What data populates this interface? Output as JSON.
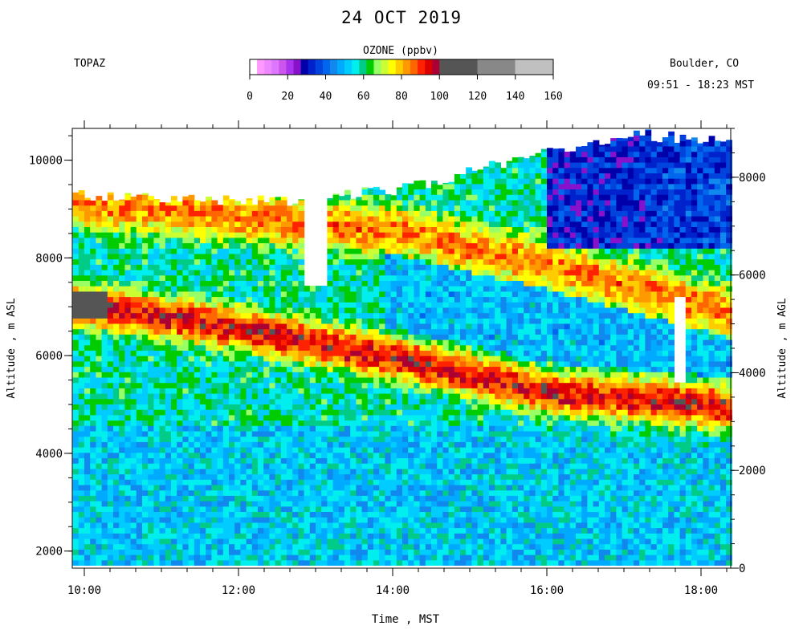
{
  "header": {
    "title": "24 OCT 2019",
    "station": "TOPAZ",
    "location": "Boulder, CO",
    "time_range": "09:51 - 18:23 MST"
  },
  "colorbar": {
    "title": "OZONE (ppbv)",
    "ticks": [
      "0",
      "20",
      "40",
      "60",
      "80",
      "100",
      "120",
      "140",
      "160"
    ],
    "fine_colors": [
      "#ffffff",
      "#ff99ff",
      "#ee88ff",
      "#dd77ff",
      "#cc55ee",
      "#aa33ee",
      "#8811cc",
      "#0000aa",
      "#0022cc",
      "#0044dd",
      "#0066ee",
      "#1188ee",
      "#00aaff",
      "#00ccff",
      "#00eeee",
      "#00cc88",
      "#00cc00",
      "#99ff66",
      "#ccff33",
      "#ffff00",
      "#ffcc00",
      "#ff9900",
      "#ff6600",
      "#ff2200",
      "#dd0000",
      "#aa0033"
    ],
    "coarse_colors": [
      "#555555",
      "#888888",
      "#c0c0c0"
    ]
  },
  "axes": {
    "xlabel": "Time , MST",
    "ylabel_left": "Altitude , m ASL",
    "ylabel_right": "Altitude , m AGL",
    "x_ticks": [
      "10:00",
      "12:00",
      "14:00",
      "16:00",
      "18:00"
    ],
    "y_left_ticks": [
      "2000",
      "4000",
      "6000",
      "8000",
      "10000"
    ],
    "y_right_ticks": [
      "0",
      "2000",
      "4000",
      "6000",
      "8000"
    ]
  },
  "chart_data": {
    "type": "heatmap",
    "title": "24 OCT 2019",
    "variable": "OZONE (ppbv)",
    "xlabel": "Time , MST",
    "ylabel": "Altitude , m ASL",
    "y2label": "Altitude , m AGL",
    "x_range": [
      "09:51",
      "18:23"
    ],
    "ylim": [
      1650,
      10650
    ],
    "y2lim": [
      0,
      9000
    ],
    "value_range": [
      0,
      160
    ],
    "top_of_data_m": [
      {
        "time": "09:51",
        "alt": 9300
      },
      {
        "time": "12:45",
        "alt": 9150
      },
      {
        "time": "14:00",
        "alt": 9400
      },
      {
        "time": "15:30",
        "alt": 9950
      },
      {
        "time": "17:00",
        "alt": 10550
      },
      {
        "time": "18:23",
        "alt": 10350
      }
    ],
    "data_gaps": [
      {
        "from": "12:50",
        "to": "13:05",
        "alt_from": 7400,
        "alt_to": 9200
      },
      {
        "from": "17:35",
        "to": "17:45",
        "alt_from": 5400,
        "alt_to": 7150
      }
    ],
    "features": [
      {
        "name": "ozone maximum layer",
        "value_ppbv": 95,
        "center_alt": [
          {
            "time": "09:51",
            "alt": 7000
          },
          {
            "time": "12:00",
            "alt": 6500
          },
          {
            "time": "14:00",
            "alt": 5900
          },
          {
            "time": "16:00",
            "alt": 5200
          },
          {
            "time": "18:23",
            "alt": 4900
          }
        ]
      },
      {
        "name": "upper ozone layer",
        "value_ppbv": 85,
        "center_alt": [
          {
            "time": "09:51",
            "alt": 9100
          },
          {
            "time": "14:00",
            "alt": 8500
          },
          {
            "time": "16:00",
            "alt": 7800
          },
          {
            "time": "18:23",
            "alt": 6800
          }
        ]
      },
      {
        "name": "boundary layer",
        "value_ppbv": 40,
        "top_alt": 4500
      },
      {
        "name": "upper troposphere low ozone",
        "value_ppbv": 35,
        "region": {
          "from": "16:00",
          "to": "18:23",
          "alt_from": 8200,
          "alt_to": 10500
        }
      },
      {
        "name": "high ozone patch",
        "value_ppbv": 110,
        "region": {
          "from": "09:51",
          "to": "10:15",
          "alt_from": 6700,
          "alt_to": 7300
        }
      }
    ]
  }
}
